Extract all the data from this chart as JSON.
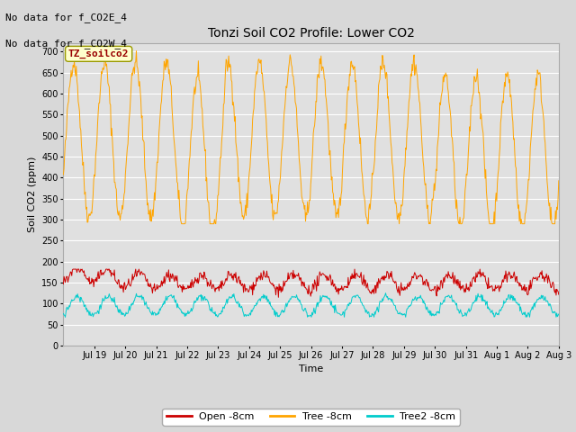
{
  "title": "Tonzi Soil CO2 Profile: Lower CO2",
  "ylabel": "Soil CO2 (ppm)",
  "xlabel": "Time",
  "annotations": [
    "No data for f_CO2E_4",
    "No data for f_CO2W_4"
  ],
  "legend_label": "TZ_soilco2",
  "legend_entries": [
    "Open -8cm",
    "Tree -8cm",
    "Tree2 -8cm"
  ],
  "ylim": [
    0,
    720
  ],
  "yticks": [
    0,
    50,
    100,
    150,
    200,
    250,
    300,
    350,
    400,
    450,
    500,
    550,
    600,
    650,
    700
  ],
  "background_color": "#d8d8d8",
  "plot_bg_color": "#e0e0e0",
  "grid_color": "#ffffff",
  "n_days": 16,
  "orange_color": "#ffa500",
  "red_color": "#cc0000",
  "cyan_color": "#00cccc",
  "tick_labels": [
    "Jul 19",
    "Jul 20",
    "Jul 21",
    "Jul 22",
    "Jul 23",
    "Jul 24",
    "Jul 25",
    "Jul 26",
    "Jul 27",
    "Jul 28",
    "Jul 29",
    "Jul 30",
    "Jul 31",
    "Aug 1",
    "Aug 2",
    "Aug 3"
  ],
  "title_fontsize": 10,
  "label_fontsize": 8,
  "tick_fontsize": 7,
  "annot_fontsize": 8
}
